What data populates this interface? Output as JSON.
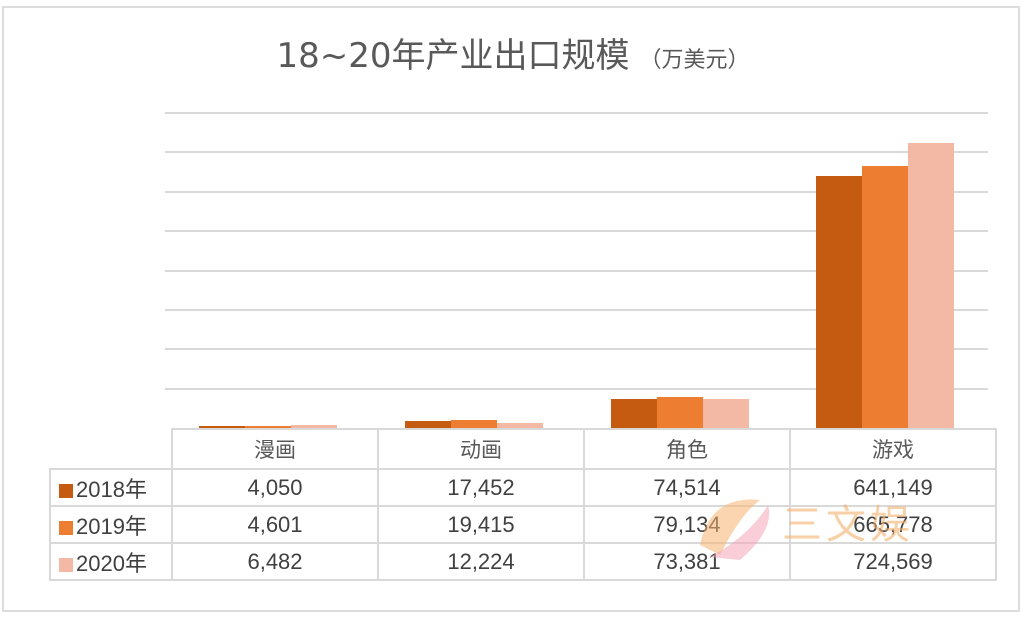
{
  "chart_data": {
    "type": "bar",
    "title": "18~20年产业出口规模",
    "unit": "（万美元）",
    "categories": [
      "漫画",
      "动画",
      "角色",
      "游戏"
    ],
    "series": [
      {
        "name": "2018年",
        "color": "#c55a11",
        "values": [
          4050,
          17452,
          74514,
          641149
        ],
        "labels": [
          "4,050",
          "17,452",
          "74,514",
          "641,149"
        ]
      },
      {
        "name": "2019年",
        "color": "#ed7d31",
        "values": [
          4601,
          19415,
          79134,
          665778
        ],
        "labels": [
          "4,601",
          "19,415",
          "79,134",
          "665,778"
        ]
      },
      {
        "name": "2020年",
        "color": "#f4b9a4",
        "values": [
          6482,
          12224,
          73381,
          724569
        ],
        "labels": [
          "6,482",
          "12,224",
          "73,381",
          "724,569"
        ]
      }
    ],
    "xlabel": "",
    "ylabel": "",
    "ylim": [
      0,
      800000
    ],
    "grid": true,
    "gridlines": 8,
    "legend_position": "data-table",
    "y_tick_labels_visible": false
  },
  "watermark": {
    "text": "三文娱"
  }
}
